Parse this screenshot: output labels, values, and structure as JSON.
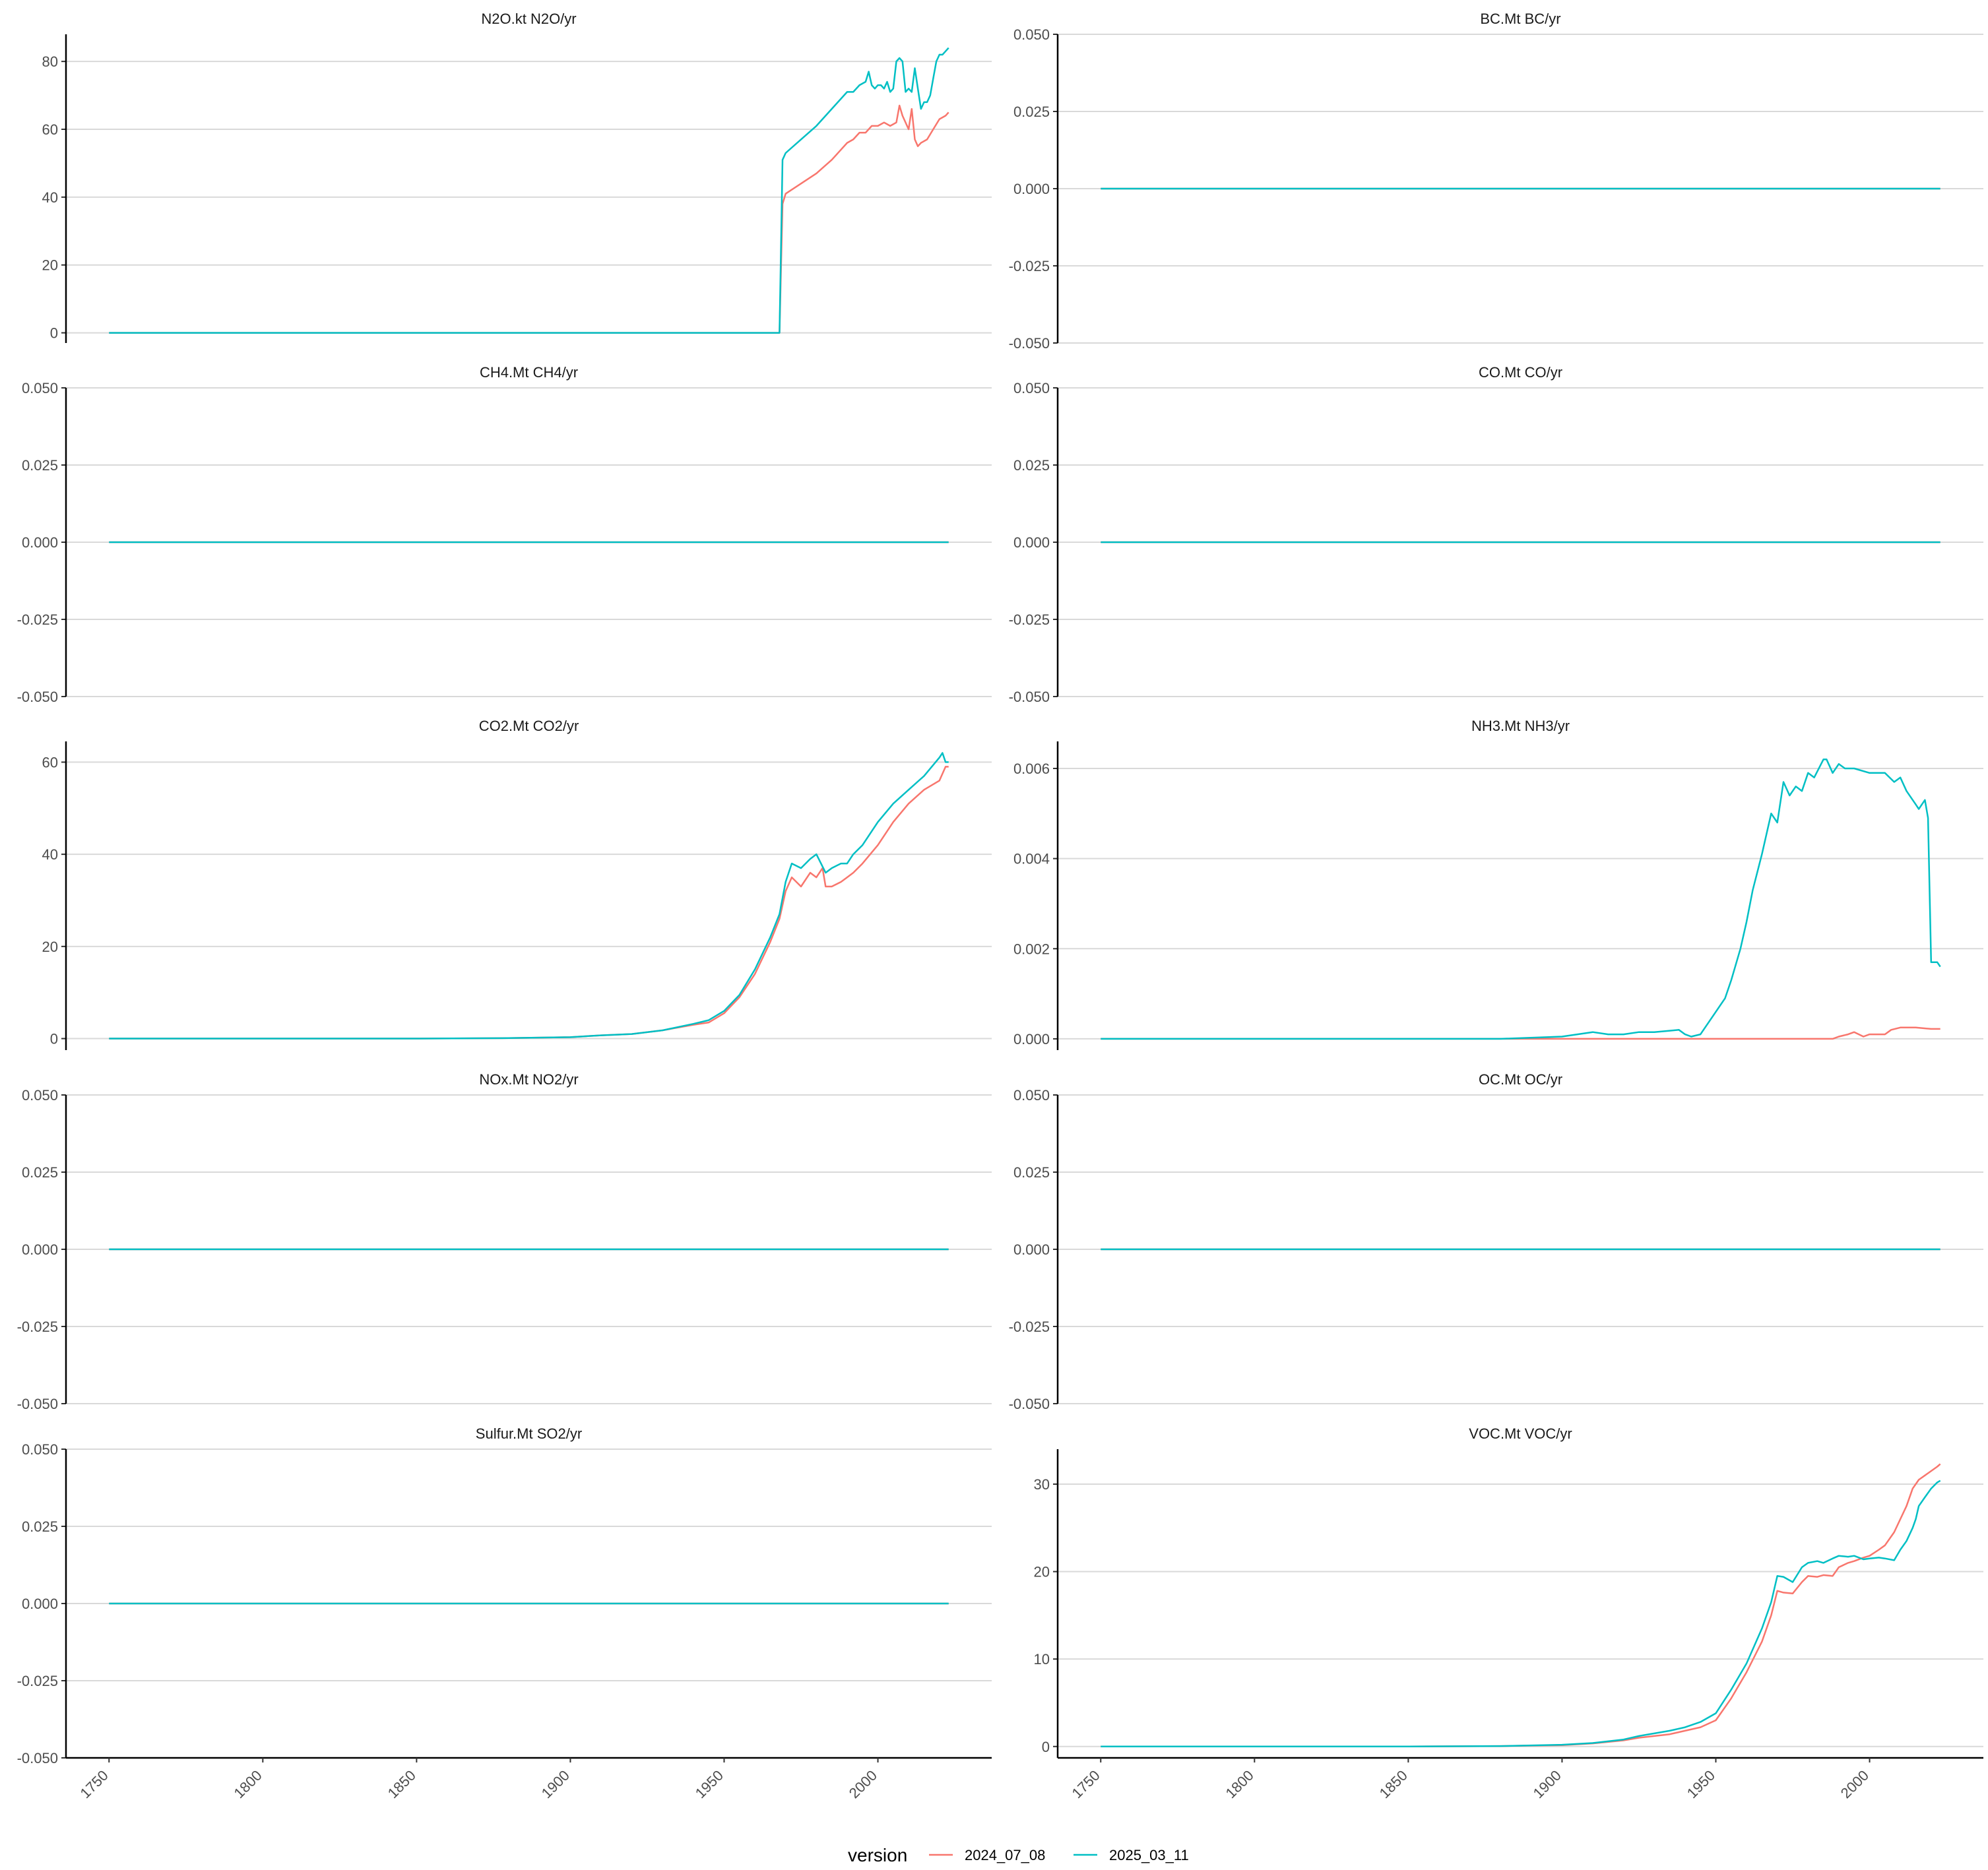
{
  "legend": {
    "title": "version",
    "entries": [
      {
        "label": "2024_07_08",
        "color": "#F8766D"
      },
      {
        "label": "2025_03_11",
        "color": "#00BFC4"
      }
    ]
  },
  "chart_data": [
    {
      "type": "line",
      "title": "N2O.kt N2O/yr",
      "xlim": [
        1736,
        2037
      ],
      "ylim": [
        -3,
        88
      ],
      "yticks": [
        0,
        20,
        40,
        60,
        80
      ],
      "ytick_labels": [
        "0",
        "20",
        "40",
        "60",
        "80"
      ],
      "xticks": [],
      "grid": "horizontal",
      "series": [
        {
          "name": "2024_07_08",
          "color": "#F8766D",
          "x": [
            1750,
            1968,
            1969,
            1970,
            1975,
            1980,
            1985,
            1990,
            1992,
            1994,
            1996,
            1998,
            2000,
            2002,
            2004,
            2006,
            2007,
            2008,
            2010,
            2011,
            2012,
            2013,
            2014,
            2016,
            2018,
            2020,
            2022,
            2023
          ],
          "y": [
            0,
            0,
            38,
            41,
            44,
            47,
            51,
            56,
            57,
            59,
            59,
            61,
            61,
            62,
            61,
            62,
            67,
            64,
            60,
            66,
            57,
            55,
            56,
            57,
            60,
            63,
            64,
            65
          ]
        },
        {
          "name": "2025_03_11",
          "color": "#00BFC4",
          "x": [
            1750,
            1968,
            1969,
            1970,
            1975,
            1980,
            1985,
            1990,
            1992,
            1994,
            1996,
            1997,
            1998,
            1999,
            2000,
            2001,
            2002,
            2003,
            2004,
            2005,
            2006,
            2007,
            2008,
            2009,
            2010,
            2011,
            2012,
            2013,
            2014,
            2015,
            2016,
            2017,
            2018,
            2019,
            2020,
            2021,
            2022,
            2023
          ],
          "y": [
            0,
            0,
            51,
            53,
            57,
            61,
            66,
            71,
            71,
            73,
            74,
            77,
            73,
            72,
            73,
            73,
            72,
            74,
            71,
            72,
            80,
            81,
            80,
            71,
            72,
            71,
            78,
            72,
            66,
            68,
            68,
            70,
            75,
            80,
            82,
            82,
            83,
            84
          ]
        }
      ]
    },
    {
      "type": "line",
      "title": "BC.Mt BC/yr",
      "xlim": [
        1736,
        2037
      ],
      "ylim": [
        -0.05,
        0.05
      ],
      "yticks": [
        -0.05,
        -0.025,
        0,
        0.025,
        0.05
      ],
      "ytick_labels": [
        "-0.050",
        "-0.025",
        "0.000",
        "0.025",
        "0.050"
      ],
      "xticks": [],
      "grid": "horizontal",
      "series": [
        {
          "name": "2024_07_08",
          "color": "#F8766D",
          "x": [
            1750,
            2023
          ],
          "y": [
            0,
            0
          ]
        },
        {
          "name": "2025_03_11",
          "color": "#00BFC4",
          "x": [
            1750,
            2023
          ],
          "y": [
            0,
            0
          ]
        }
      ]
    },
    {
      "type": "line",
      "title": "CH4.Mt CH4/yr",
      "xlim": [
        1736,
        2037
      ],
      "ylim": [
        -0.05,
        0.05
      ],
      "yticks": [
        -0.05,
        -0.025,
        0,
        0.025,
        0.05
      ],
      "ytick_labels": [
        "-0.050",
        "-0.025",
        "0.000",
        "0.025",
        "0.050"
      ],
      "xticks": [],
      "grid": "horizontal",
      "series": [
        {
          "name": "2024_07_08",
          "color": "#F8766D",
          "x": [
            1750,
            2023
          ],
          "y": [
            0,
            0
          ]
        },
        {
          "name": "2025_03_11",
          "color": "#00BFC4",
          "x": [
            1750,
            2023
          ],
          "y": [
            0,
            0
          ]
        }
      ]
    },
    {
      "type": "line",
      "title": "CO.Mt CO/yr",
      "xlim": [
        1736,
        2037
      ],
      "ylim": [
        -0.05,
        0.05
      ],
      "yticks": [
        -0.05,
        -0.025,
        0,
        0.025,
        0.05
      ],
      "ytick_labels": [
        "-0.050",
        "-0.025",
        "0.000",
        "0.025",
        "0.050"
      ],
      "xticks": [],
      "grid": "horizontal",
      "series": [
        {
          "name": "2024_07_08",
          "color": "#F8766D",
          "x": [
            1750,
            2023
          ],
          "y": [
            0,
            0
          ]
        },
        {
          "name": "2025_03_11",
          "color": "#00BFC4",
          "x": [
            1750,
            2023
          ],
          "y": [
            0,
            0
          ]
        }
      ]
    },
    {
      "type": "line",
      "title": "CO2.Mt CO2/yr",
      "xlim": [
        1736,
        2037
      ],
      "ylim": [
        -2.5,
        64.5
      ],
      "yticks": [
        0,
        20,
        40,
        60
      ],
      "ytick_labels": [
        "0",
        "20",
        "40",
        "60"
      ],
      "xticks": [],
      "grid": "horizontal",
      "series": [
        {
          "name": "2024_07_08",
          "color": "#F8766D",
          "x": [
            1750,
            1850,
            1880,
            1900,
            1910,
            1920,
            1930,
            1940,
            1945,
            1950,
            1955,
            1960,
            1965,
            1968,
            1970,
            1972,
            1975,
            1978,
            1980,
            1982,
            1983,
            1985,
            1988,
            1990,
            1992,
            1995,
            2000,
            2005,
            2010,
            2015,
            2020,
            2022,
            2023
          ],
          "y": [
            0,
            0,
            0.1,
            0.3,
            0.7,
            1.0,
            1.8,
            3.0,
            3.5,
            5.5,
            9.0,
            14,
            21,
            26,
            32,
            35,
            33,
            36,
            35,
            37,
            33,
            33,
            34,
            35,
            36,
            38,
            42,
            47,
            51,
            54,
            56,
            59,
            59
          ]
        },
        {
          "name": "2025_03_11",
          "color": "#00BFC4",
          "x": [
            1750,
            1850,
            1880,
            1900,
            1910,
            1920,
            1930,
            1940,
            1945,
            1950,
            1955,
            1960,
            1965,
            1968,
            1970,
            1972,
            1975,
            1978,
            1980,
            1983,
            1985,
            1988,
            1990,
            1992,
            1995,
            2000,
            2005,
            2010,
            2015,
            2020,
            2021,
            2022,
            2023
          ],
          "y": [
            0,
            0,
            0.1,
            0.3,
            0.7,
            1.0,
            1.8,
            3.2,
            4.0,
            6.0,
            9.5,
            15,
            22,
            27,
            34,
            38,
            37,
            39,
            40,
            36,
            37,
            38,
            38,
            40,
            42,
            47,
            51,
            54,
            57,
            61,
            62,
            60,
            60
          ]
        }
      ]
    },
    {
      "type": "line",
      "title": "NH3.Mt NH3/yr",
      "xlim": [
        1736,
        2037
      ],
      "ylim": [
        -0.00025,
        0.0066
      ],
      "yticks": [
        0,
        0.002,
        0.004,
        0.006
      ],
      "ytick_labels": [
        "0.000",
        "0.002",
        "0.004",
        "0.006"
      ],
      "xticks": [],
      "grid": "horizontal",
      "series": [
        {
          "name": "2024_07_08",
          "color": "#F8766D",
          "x": [
            1750,
            1988,
            1990,
            1993,
            1995,
            1998,
            2000,
            2005,
            2007,
            2010,
            2015,
            2020,
            2023
          ],
          "y": [
            0,
            0,
            5e-05,
            0.0001,
            0.00015,
            5e-05,
            0.0001,
            0.0001,
            0.0002,
            0.00025,
            0.00025,
            0.00022,
            0.00022
          ]
        },
        {
          "name": "2025_03_11",
          "color": "#00BFC4",
          "x": [
            1750,
            1850,
            1880,
            1900,
            1905,
            1910,
            1915,
            1920,
            1925,
            1930,
            1935,
            1938,
            1940,
            1942,
            1945,
            1948,
            1950,
            1953,
            1955,
            1958,
            1960,
            1962,
            1965,
            1968,
            1970,
            1972,
            1974,
            1976,
            1978,
            1980,
            1982,
            1985,
            1986,
            1988,
            1990,
            1992,
            1995,
            2000,
            2005,
            2008,
            2010,
            2012,
            2015,
            2016,
            2017,
            2018,
            2019,
            2020,
            2022,
            2023
          ],
          "y": [
            0,
            0,
            0,
            5e-05,
            0.0001,
            0.00015,
            0.0001,
            0.0001,
            0.00015,
            0.00015,
            0.00018,
            0.0002,
            0.0001,
            5e-05,
            0.0001,
            0.0004,
            0.0006,
            0.0009,
            0.0013,
            0.002,
            0.0026,
            0.0033,
            0.0041,
            0.005,
            0.0048,
            0.0057,
            0.0054,
            0.0056,
            0.0055,
            0.0059,
            0.0058,
            0.0062,
            0.0062,
            0.0059,
            0.0061,
            0.006,
            0.006,
            0.0059,
            0.0059,
            0.0057,
            0.0058,
            0.0055,
            0.0052,
            0.0051,
            0.0052,
            0.0053,
            0.0049,
            0.0017,
            0.0017,
            0.0016
          ]
        }
      ]
    },
    {
      "type": "line",
      "title": "NOx.Mt NO2/yr",
      "xlim": [
        1736,
        2037
      ],
      "ylim": [
        -0.05,
        0.05
      ],
      "yticks": [
        -0.05,
        -0.025,
        0,
        0.025,
        0.05
      ],
      "ytick_labels": [
        "-0.050",
        "-0.025",
        "0.000",
        "0.025",
        "0.050"
      ],
      "xticks": [],
      "grid": "horizontal",
      "series": [
        {
          "name": "2024_07_08",
          "color": "#F8766D",
          "x": [
            1750,
            2023
          ],
          "y": [
            0,
            0
          ]
        },
        {
          "name": "2025_03_11",
          "color": "#00BFC4",
          "x": [
            1750,
            2023
          ],
          "y": [
            0,
            0
          ]
        }
      ]
    },
    {
      "type": "line",
      "title": "OC.Mt OC/yr",
      "xlim": [
        1736,
        2037
      ],
      "ylim": [
        -0.05,
        0.05
      ],
      "yticks": [
        -0.05,
        -0.025,
        0,
        0.025,
        0.05
      ],
      "ytick_labels": [
        "-0.050",
        "-0.025",
        "0.000",
        "0.025",
        "0.050"
      ],
      "xticks": [],
      "grid": "horizontal",
      "series": [
        {
          "name": "2024_07_08",
          "color": "#F8766D",
          "x": [
            1750,
            2023
          ],
          "y": [
            0,
            0
          ]
        },
        {
          "name": "2025_03_11",
          "color": "#00BFC4",
          "x": [
            1750,
            2023
          ],
          "y": [
            0,
            0
          ]
        }
      ]
    },
    {
      "type": "line",
      "title": "Sulfur.Mt SO2/yr",
      "xlim": [
        1736,
        2037
      ],
      "ylim": [
        -0.05,
        0.05
      ],
      "yticks": [
        -0.05,
        -0.025,
        0,
        0.025,
        0.05
      ],
      "ytick_labels": [
        "-0.050",
        "-0.025",
        "0.000",
        "0.025",
        "0.050"
      ],
      "xticks": [
        1750,
        1800,
        1850,
        1900,
        1950,
        2000
      ],
      "xtick_labels": [
        "1750",
        "1800",
        "1850",
        "1900",
        "1950",
        "2000"
      ],
      "grid": "horizontal",
      "series": [
        {
          "name": "2024_07_08",
          "color": "#F8766D",
          "x": [
            1750,
            2023
          ],
          "y": [
            0,
            0
          ]
        },
        {
          "name": "2025_03_11",
          "color": "#00BFC4",
          "x": [
            1750,
            2023
          ],
          "y": [
            0,
            0
          ]
        }
      ]
    },
    {
      "type": "line",
      "title": "VOC.Mt VOC/yr",
      "xlim": [
        1736,
        2037
      ],
      "ylim": [
        -1.3,
        34
      ],
      "yticks": [
        0,
        10,
        20,
        30
      ],
      "ytick_labels": [
        "0",
        "10",
        "20",
        "30"
      ],
      "xticks": [
        1750,
        1800,
        1850,
        1900,
        1950,
        2000
      ],
      "xtick_labels": [
        "1750",
        "1800",
        "1850",
        "1900",
        "1950",
        "2000"
      ],
      "grid": "horizontal",
      "series": [
        {
          "name": "2024_07_08",
          "color": "#F8766D",
          "x": [
            1750,
            1850,
            1880,
            1900,
            1910,
            1920,
            1925,
            1930,
            1935,
            1940,
            1945,
            1950,
            1955,
            1960,
            1965,
            1968,
            1970,
            1972,
            1975,
            1978,
            1980,
            1983,
            1985,
            1988,
            1990,
            1993,
            1995,
            1998,
            2000,
            2003,
            2005,
            2008,
            2010,
            2012,
            2014,
            2015,
            2016,
            2018,
            2020,
            2022,
            2023
          ],
          "y": [
            0,
            0,
            0.05,
            0.15,
            0.35,
            0.7,
            1.0,
            1.2,
            1.4,
            1.8,
            2.2,
            3.0,
            5.5,
            8.5,
            12,
            15,
            17.8,
            17.6,
            17.5,
            18.8,
            19.5,
            19.4,
            19.6,
            19.5,
            20.5,
            21,
            21.2,
            21.6,
            21.8,
            22.5,
            23,
            24.5,
            26,
            27.5,
            29.5,
            30,
            30.5,
            31,
            31.5,
            32,
            32.3
          ]
        },
        {
          "name": "2025_03_11",
          "color": "#00BFC4",
          "x": [
            1750,
            1850,
            1880,
            1900,
            1910,
            1920,
            1925,
            1930,
            1935,
            1940,
            1945,
            1950,
            1955,
            1960,
            1965,
            1968,
            1970,
            1972,
            1975,
            1978,
            1980,
            1983,
            1985,
            1988,
            1990,
            1993,
            1995,
            1998,
            2000,
            2003,
            2005,
            2008,
            2010,
            2012,
            2014,
            2015,
            2016,
            2018,
            2020,
            2022,
            2023
          ],
          "y": [
            0,
            0,
            0.05,
            0.2,
            0.4,
            0.8,
            1.2,
            1.5,
            1.8,
            2.2,
            2.8,
            3.8,
            6.5,
            9.5,
            13.5,
            16.5,
            19.5,
            19.4,
            18.8,
            20.5,
            21,
            21.2,
            21,
            21.5,
            21.8,
            21.7,
            21.8,
            21.4,
            21.5,
            21.6,
            21.5,
            21.3,
            22.5,
            23.5,
            25,
            26,
            27.5,
            28.5,
            29.5,
            30.2,
            30.4
          ]
        }
      ]
    }
  ]
}
